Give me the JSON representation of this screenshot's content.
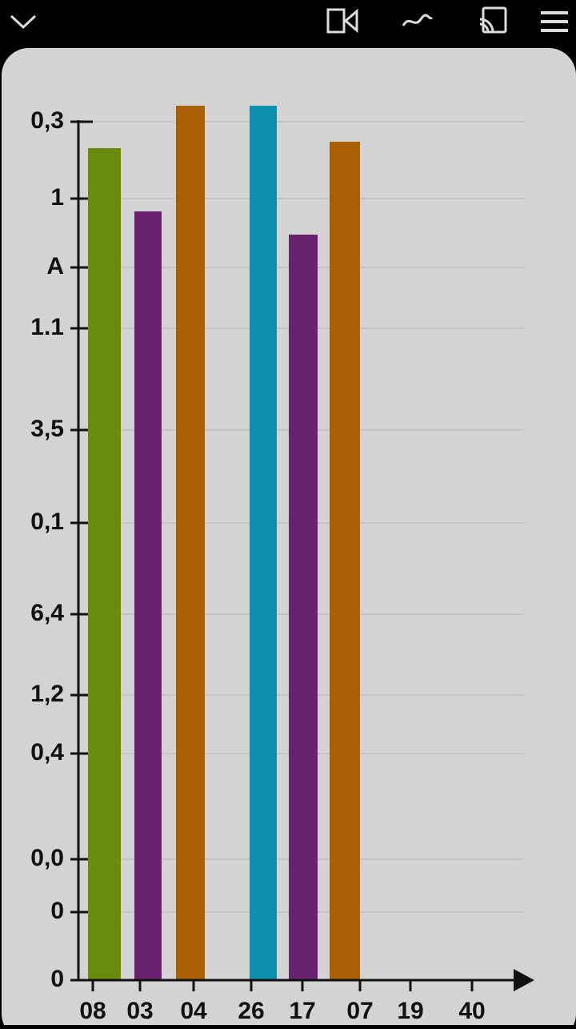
{
  "chart_data": {
    "type": "bar",
    "categories": [
      "08",
      "03",
      "04",
      "26",
      "17",
      "07",
      "19",
      "40"
    ],
    "values": [
      1039,
      960,
      1092,
      1092,
      931,
      1047,
      null,
      null
    ],
    "colors": [
      "#6a8c0e",
      "#6a2270",
      "#a85f06",
      "#0b8fac",
      "#6a2270",
      "#a85f06",
      null,
      null
    ],
    "ylim": [
      0,
      1100
    ],
    "yticks": [
      {
        "value": 1072,
        "label": "0,3"
      },
      {
        "value": 976,
        "label": "1"
      },
      {
        "value": 890,
        "label": "A"
      },
      {
        "value": 814,
        "label": "1.1"
      },
      {
        "value": 687,
        "label": "3,5"
      },
      {
        "value": 571,
        "label": "0,1"
      },
      {
        "value": 457,
        "label": "6,4"
      },
      {
        "value": 356,
        "label": "1,2"
      },
      {
        "value": 283,
        "label": "0,4"
      },
      {
        "value": 151,
        "label": "0,0"
      },
      {
        "value": 85,
        "label": "0"
      },
      0
    ],
    "grid": true
  }
}
